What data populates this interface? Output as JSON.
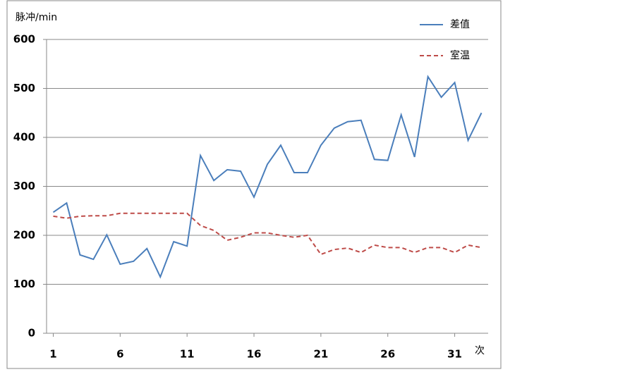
{
  "chart_data": {
    "type": "line",
    "ylabel": "脉冲/min",
    "xlabel": "次",
    "x": [
      1,
      2,
      3,
      4,
      5,
      6,
      7,
      8,
      9,
      10,
      11,
      12,
      13,
      14,
      15,
      16,
      17,
      18,
      19,
      20,
      21,
      22,
      23,
      24,
      25,
      26,
      27,
      28,
      29,
      30,
      31,
      32,
      33
    ],
    "series": [
      {
        "name": "差值",
        "color": "#4a7ebb",
        "dash": false,
        "values": [
          247,
          266,
          160,
          151,
          201,
          141,
          147,
          173,
          115,
          187,
          178,
          363,
          312,
          334,
          331,
          278,
          345,
          384,
          328,
          328,
          384,
          419,
          432,
          435,
          355,
          353,
          446,
          360,
          524,
          482,
          512,
          394,
          450
        ]
      },
      {
        "name": "室温",
        "color": "#be4b48",
        "dash": true,
        "values": [
          239,
          235,
          239,
          240,
          240,
          245,
          245,
          245,
          245,
          245,
          245,
          220,
          210,
          190,
          196,
          205,
          205,
          200,
          196,
          200,
          161,
          171,
          174,
          165,
          180,
          175,
          175,
          165,
          175,
          175,
          165,
          180,
          175
        ]
      }
    ],
    "xlim": [
      0.5,
      33.5
    ],
    "xticks": [
      1,
      6,
      11,
      16,
      21,
      26,
      31
    ],
    "ylim": [
      0,
      600
    ],
    "yticks": [
      0,
      100,
      200,
      300,
      400,
      500,
      600
    ],
    "grid": true,
    "legend": "top-right"
  }
}
